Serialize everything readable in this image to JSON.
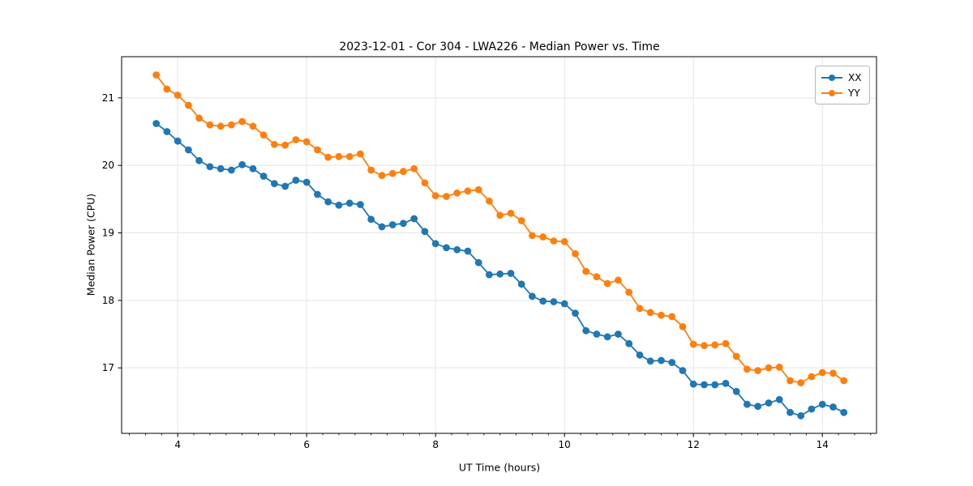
{
  "figure": {
    "title": "2023-12-01 - Cor 304 - LWA226 - Median Power vs. Time",
    "xlabel": "UT Time (hours)",
    "ylabel": "Median Power (CPU)"
  },
  "legend": {
    "position": "upper-right",
    "items": [
      {
        "label": "XX",
        "color": "#1f77b4"
      },
      {
        "label": "YY",
        "color": "#ff7f0e"
      }
    ]
  },
  "colors": {
    "series_xx": "#1f77b4",
    "series_yy": "#ff7f0e",
    "grid": "#e5e5e5",
    "spine": "#000000",
    "text": "#000000",
    "background": "#ffffff"
  },
  "chart_data": {
    "type": "line",
    "title": "2023-12-01 - Cor 304 - LWA226 - Median Power vs. Time",
    "xlabel": "UT Time (hours)",
    "ylabel": "Median Power (CPU)",
    "grid": true,
    "legend_position": "upper right",
    "marker": "o",
    "xlim": [
      3.13,
      14.84
    ],
    "ylim": [
      16.03,
      21.61
    ],
    "xticks": [
      4,
      6,
      8,
      10,
      12,
      14
    ],
    "yticks": [
      17,
      18,
      19,
      20,
      21
    ],
    "minor_xtick_step": 0.25,
    "x": [
      3.667,
      3.833,
      4.0,
      4.167,
      4.333,
      4.5,
      4.667,
      4.833,
      5.0,
      5.167,
      5.333,
      5.5,
      5.667,
      5.833,
      6.0,
      6.167,
      6.333,
      6.5,
      6.667,
      6.833,
      7.0,
      7.167,
      7.333,
      7.5,
      7.667,
      7.833,
      8.0,
      8.167,
      8.333,
      8.5,
      8.667,
      8.833,
      9.0,
      9.167,
      9.333,
      9.5,
      9.667,
      9.833,
      10.0,
      10.167,
      10.333,
      10.5,
      10.667,
      10.833,
      11.0,
      11.167,
      11.333,
      11.5,
      11.667,
      11.833,
      12.0,
      12.167,
      12.333,
      12.5,
      12.667,
      12.833,
      13.0,
      13.167,
      13.333,
      13.5,
      13.667,
      13.833,
      14.0,
      14.167,
      14.333
    ],
    "series": [
      {
        "name": "XX",
        "color": "#1f77b4",
        "values": [
          20.62,
          20.5,
          20.36,
          20.23,
          20.07,
          19.98,
          19.95,
          19.93,
          20.01,
          19.95,
          19.84,
          19.73,
          19.69,
          19.78,
          19.75,
          19.57,
          19.46,
          19.41,
          19.44,
          19.42,
          19.2,
          19.09,
          19.12,
          19.14,
          19.21,
          19.02,
          18.84,
          18.78,
          18.75,
          18.73,
          18.56,
          18.38,
          18.39,
          18.4,
          18.24,
          18.06,
          17.99,
          17.98,
          17.95,
          17.81,
          17.55,
          17.5,
          17.46,
          17.5,
          17.36,
          17.19,
          17.1,
          17.11,
          17.08,
          16.96,
          16.76,
          16.75,
          16.75,
          16.77,
          16.65,
          16.46,
          16.43,
          16.48,
          16.53,
          16.34,
          16.29,
          16.39,
          16.46,
          16.42,
          16.34
        ]
      },
      {
        "name": "YY",
        "color": "#ff7f0e",
        "values": [
          21.34,
          21.13,
          21.04,
          20.89,
          20.7,
          20.6,
          20.58,
          20.6,
          20.65,
          20.58,
          20.45,
          20.31,
          20.3,
          20.38,
          20.35,
          20.23,
          20.12,
          20.13,
          20.13,
          20.17,
          19.93,
          19.85,
          19.88,
          19.91,
          19.95,
          19.74,
          19.55,
          19.54,
          19.59,
          19.62,
          19.64,
          19.47,
          19.26,
          19.29,
          19.18,
          18.96,
          18.94,
          18.88,
          18.87,
          18.69,
          18.43,
          18.35,
          18.25,
          18.3,
          18.12,
          17.88,
          17.82,
          17.78,
          17.76,
          17.61,
          17.35,
          17.33,
          17.34,
          17.36,
          17.17,
          16.98,
          16.96,
          17.0,
          17.01,
          16.81,
          16.78,
          16.87,
          16.93,
          16.92,
          16.81
        ]
      }
    ]
  }
}
